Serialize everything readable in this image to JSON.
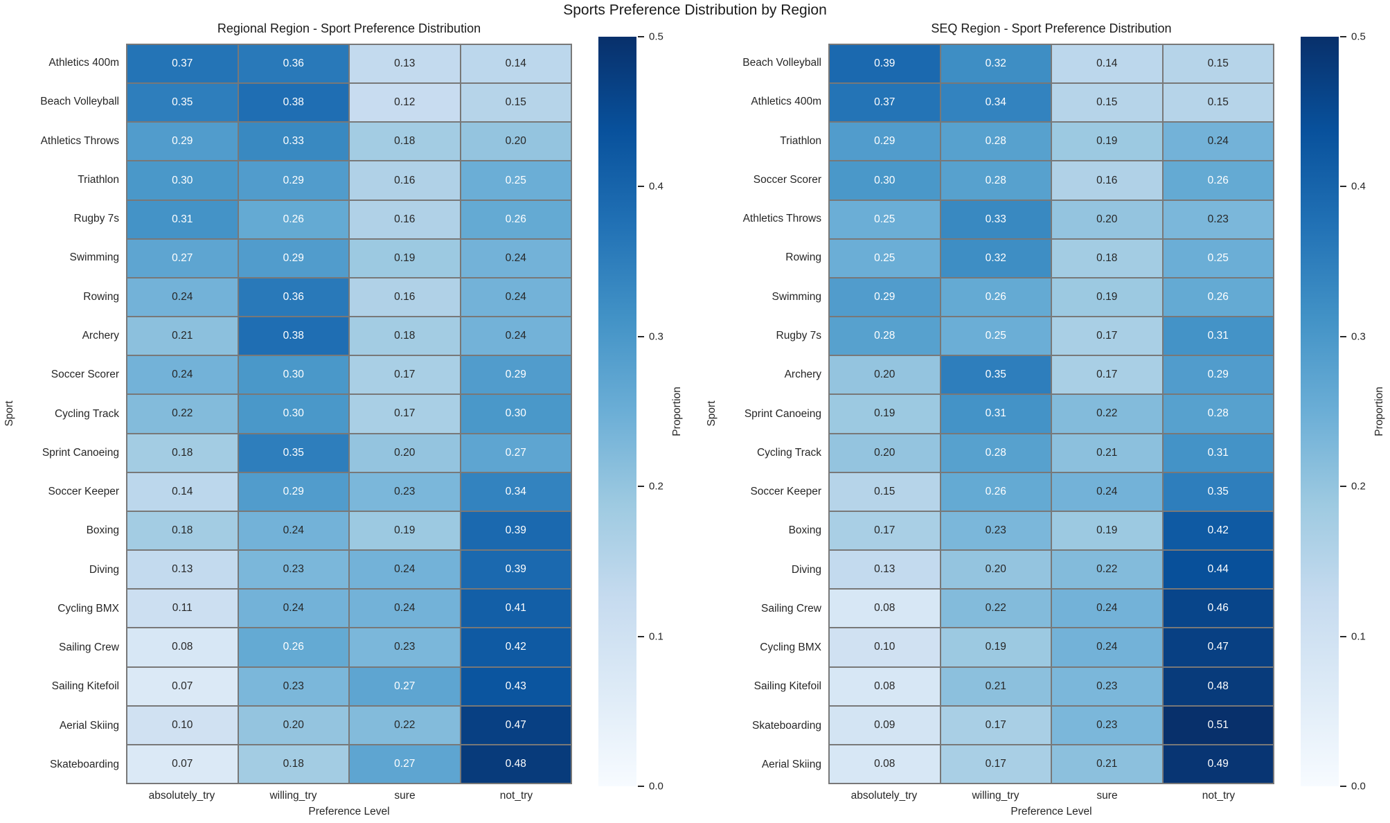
{
  "title": "Sports Preference Distribution by Region",
  "style": {
    "grid_line_color": "#787878",
    "annotation_dark_text": "#262626",
    "annotation_light_text": "#ffffff",
    "colormap_stops": [
      "#f7fbff",
      "#deebf7",
      "#c6dbef",
      "#9ecae1",
      "#6baed6",
      "#4292c6",
      "#2171b5",
      "#08519c",
      "#08306b"
    ]
  },
  "chart_data": [
    {
      "type": "heatmap",
      "title": "Regional Region - Sport Preference Distribution",
      "xlabel": "Preference Level",
      "ylabel": "Sport",
      "columns": [
        "absolutely_try",
        "willing_try",
        "sure",
        "not_try"
      ],
      "rows": [
        "Athletics 400m",
        "Beach Volleyball",
        "Athletics Throws",
        "Triathlon",
        "Rugby 7s",
        "Swimming",
        "Rowing",
        "Archery",
        "Soccer Scorer",
        "Cycling Track",
        "Sprint Canoeing",
        "Soccer Keeper",
        "Boxing",
        "Diving",
        "Cycling BMX",
        "Sailing Crew",
        "Sailing Kitefoil",
        "Aerial Skiing",
        "Skateboarding"
      ],
      "values": [
        [
          0.37,
          0.36,
          0.13,
          0.14
        ],
        [
          0.35,
          0.38,
          0.12,
          0.15
        ],
        [
          0.29,
          0.33,
          0.18,
          0.2
        ],
        [
          0.3,
          0.29,
          0.16,
          0.25
        ],
        [
          0.31,
          0.26,
          0.16,
          0.26
        ],
        [
          0.27,
          0.29,
          0.19,
          0.24
        ],
        [
          0.24,
          0.36,
          0.16,
          0.24
        ],
        [
          0.21,
          0.38,
          0.18,
          0.24
        ],
        [
          0.24,
          0.3,
          0.17,
          0.29
        ],
        [
          0.22,
          0.3,
          0.17,
          0.3
        ],
        [
          0.18,
          0.35,
          0.2,
          0.27
        ],
        [
          0.14,
          0.29,
          0.23,
          0.34
        ],
        [
          0.18,
          0.24,
          0.19,
          0.39
        ],
        [
          0.13,
          0.23,
          0.24,
          0.39
        ],
        [
          0.11,
          0.24,
          0.24,
          0.41
        ],
        [
          0.08,
          0.26,
          0.23,
          0.42
        ],
        [
          0.07,
          0.23,
          0.27,
          0.43
        ],
        [
          0.1,
          0.2,
          0.22,
          0.47
        ],
        [
          0.07,
          0.18,
          0.27,
          0.48
        ]
      ],
      "colorbar": {
        "label": "Proportion",
        "ticks": [
          "0.5",
          "0.4",
          "0.3",
          "0.2",
          "0.1",
          "0.0"
        ],
        "vmin": 0.0,
        "vmax": 0.5,
        "colormap": "Blues"
      }
    },
    {
      "type": "heatmap",
      "title": "SEQ Region - Sport Preference Distribution",
      "xlabel": "Preference Level",
      "ylabel": "Sport",
      "columns": [
        "absolutely_try",
        "willing_try",
        "sure",
        "not_try"
      ],
      "rows": [
        "Beach Volleyball",
        "Athletics 400m",
        "Triathlon",
        "Soccer Scorer",
        "Athletics Throws",
        "Rowing",
        "Swimming",
        "Rugby 7s",
        "Archery",
        "Sprint Canoeing",
        "Cycling Track",
        "Soccer Keeper",
        "Boxing",
        "Diving",
        "Sailing Crew",
        "Cycling BMX",
        "Sailing Kitefoil",
        "Skateboarding",
        "Aerial Skiing"
      ],
      "values": [
        [
          0.39,
          0.32,
          0.14,
          0.15
        ],
        [
          0.37,
          0.34,
          0.15,
          0.15
        ],
        [
          0.29,
          0.28,
          0.19,
          0.24
        ],
        [
          0.3,
          0.28,
          0.16,
          0.26
        ],
        [
          0.25,
          0.33,
          0.2,
          0.23
        ],
        [
          0.25,
          0.32,
          0.18,
          0.25
        ],
        [
          0.29,
          0.26,
          0.19,
          0.26
        ],
        [
          0.28,
          0.25,
          0.17,
          0.31
        ],
        [
          0.2,
          0.35,
          0.17,
          0.29
        ],
        [
          0.19,
          0.31,
          0.22,
          0.28
        ],
        [
          0.2,
          0.28,
          0.21,
          0.31
        ],
        [
          0.15,
          0.26,
          0.24,
          0.35
        ],
        [
          0.17,
          0.23,
          0.19,
          0.42
        ],
        [
          0.13,
          0.2,
          0.22,
          0.44
        ],
        [
          0.08,
          0.22,
          0.24,
          0.46
        ],
        [
          0.1,
          0.19,
          0.24,
          0.47
        ],
        [
          0.08,
          0.21,
          0.23,
          0.48
        ],
        [
          0.09,
          0.17,
          0.23,
          0.51
        ],
        [
          0.08,
          0.17,
          0.21,
          0.49
        ]
      ],
      "colorbar": {
        "label": "Proportion",
        "ticks": [
          "0.5",
          "0.4",
          "0.3",
          "0.2",
          "0.1",
          "0.0"
        ],
        "vmin": 0.0,
        "vmax": 0.5,
        "colormap": "Blues"
      }
    }
  ]
}
